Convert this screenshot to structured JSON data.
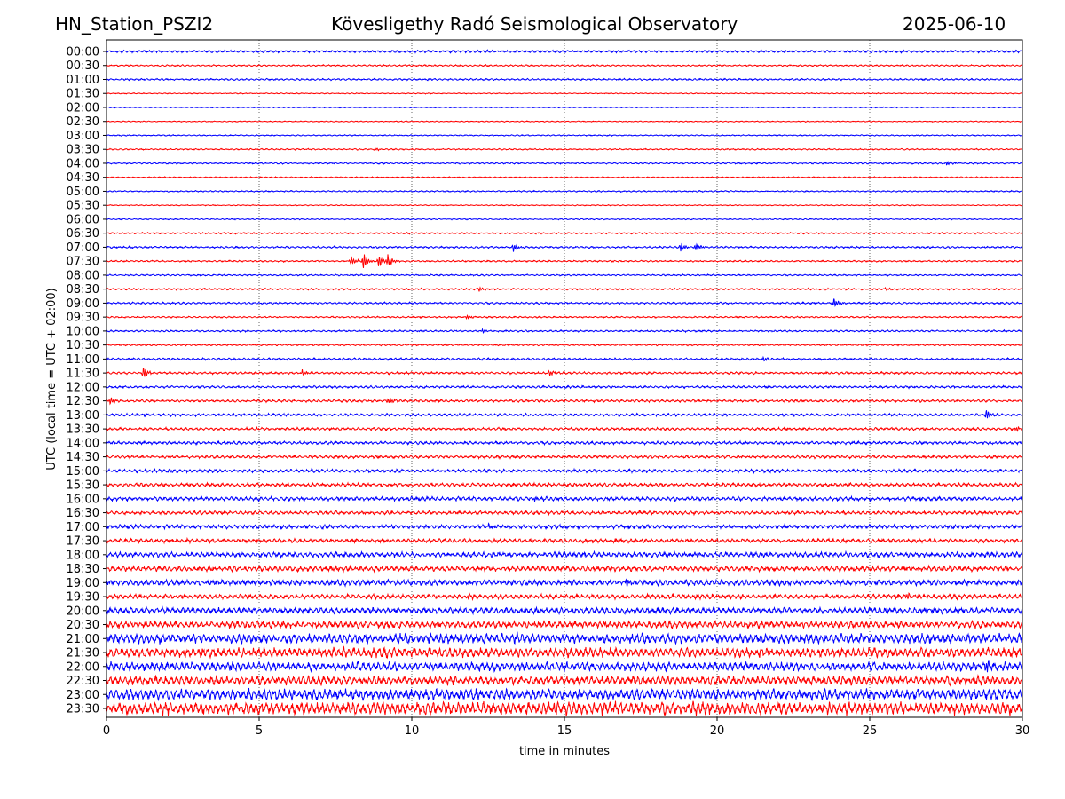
{
  "header": {
    "station": "HN_Station_PSZI2",
    "observatory": "Kövesligethy Radó Seismological Observatory",
    "date": "2025-06-10"
  },
  "chart_data": {
    "type": "line",
    "title": "Kövesligethy Radó Seismological Observatory",
    "xlabel": "time in minutes",
    "ylabel": "UTC (local time = UTC + 02:00)",
    "xlim": [
      0,
      30
    ],
    "xticks": [
      "0",
      "5",
      "10",
      "15",
      "20",
      "25",
      "30"
    ],
    "grid": "vertical dotted at x ticks",
    "colors": [
      "#0000ff",
      "#ff0000"
    ],
    "rows": [
      "00:00",
      "00:30",
      "01:00",
      "01:30",
      "02:00",
      "02:30",
      "03:00",
      "03:30",
      "04:00",
      "04:30",
      "05:00",
      "05:30",
      "06:00",
      "06:30",
      "07:00",
      "07:30",
      "08:00",
      "08:30",
      "09:00",
      "09:30",
      "10:00",
      "10:30",
      "11:00",
      "11:30",
      "12:00",
      "12:30",
      "13:00",
      "13:30",
      "14:00",
      "14:30",
      "15:00",
      "15:30",
      "16:00",
      "16:30",
      "17:00",
      "17:30",
      "18:00",
      "18:30",
      "19:00",
      "19:30",
      "20:00",
      "20:30",
      "21:00",
      "21:30",
      "22:00",
      "22:30",
      "23:00",
      "23:30"
    ],
    "noise_amplitude": [
      1.2,
      0.8,
      0.9,
      0.5,
      0.5,
      0.5,
      0.6,
      0.7,
      0.8,
      0.6,
      0.7,
      0.5,
      0.6,
      0.8,
      1,
      0.8,
      0.8,
      0.9,
      1,
      0.8,
      0.9,
      0.8,
      1.1,
      1.2,
      1.2,
      1.3,
      1.4,
      1.4,
      1.5,
      1.5,
      1.7,
      1.8,
      2,
      1.8,
      2,
      2,
      2.6,
      2.6,
      2.8,
      2.4,
      3,
      3.5,
      5,
      5,
      4.5,
      4.5,
      5.5,
      6.5
    ],
    "events": [
      {
        "row": "01:00",
        "minute": 10.5,
        "amp": 2
      },
      {
        "row": "03:30",
        "minute": 8.8,
        "amp": 2
      },
      {
        "row": "04:00",
        "minute": 27.5,
        "amp": 3
      },
      {
        "row": "07:00",
        "minute": 13.3,
        "amp": 6
      },
      {
        "row": "07:00",
        "minute": 18.8,
        "amp": 6
      },
      {
        "row": "07:00",
        "minute": 19.3,
        "amp": 6
      },
      {
        "row": "07:30",
        "minute": 8.0,
        "amp": 7
      },
      {
        "row": "07:30",
        "minute": 8.4,
        "amp": 11
      },
      {
        "row": "07:30",
        "minute": 8.9,
        "amp": 8
      },
      {
        "row": "07:30",
        "minute": 9.2,
        "amp": 9
      },
      {
        "row": "08:30",
        "minute": 12.2,
        "amp": 3
      },
      {
        "row": "08:30",
        "minute": 25.5,
        "amp": 2
      },
      {
        "row": "09:00",
        "minute": 23.8,
        "amp": 8
      },
      {
        "row": "09:30",
        "minute": 11.8,
        "amp": 3
      },
      {
        "row": "10:00",
        "minute": 12.3,
        "amp": 3
      },
      {
        "row": "11:00",
        "minute": 21.5,
        "amp": 3
      },
      {
        "row": "11:30",
        "minute": 1.2,
        "amp": 8
      },
      {
        "row": "11:30",
        "minute": 6.4,
        "amp": 4
      },
      {
        "row": "11:30",
        "minute": 14.5,
        "amp": 4
      },
      {
        "row": "12:30",
        "minute": 0.1,
        "amp": 5
      },
      {
        "row": "12:30",
        "minute": 9.2,
        "amp": 5
      },
      {
        "row": "13:00",
        "minute": 28.8,
        "amp": 7
      },
      {
        "row": "13:30",
        "minute": 29.8,
        "amp": 4
      },
      {
        "row": "15:00",
        "minute": 2.0,
        "amp": 3
      },
      {
        "row": "16:00",
        "minute": 14.0,
        "amp": 3
      },
      {
        "row": "17:00",
        "minute": 12.5,
        "amp": 4
      },
      {
        "row": "19:00",
        "minute": 17.0,
        "amp": 6
      },
      {
        "row": "19:30",
        "minute": 11.8,
        "amp": 5
      },
      {
        "row": "19:30",
        "minute": 26.2,
        "amp": 5
      },
      {
        "row": "22:00",
        "minute": 28.8,
        "amp": 10
      }
    ]
  }
}
